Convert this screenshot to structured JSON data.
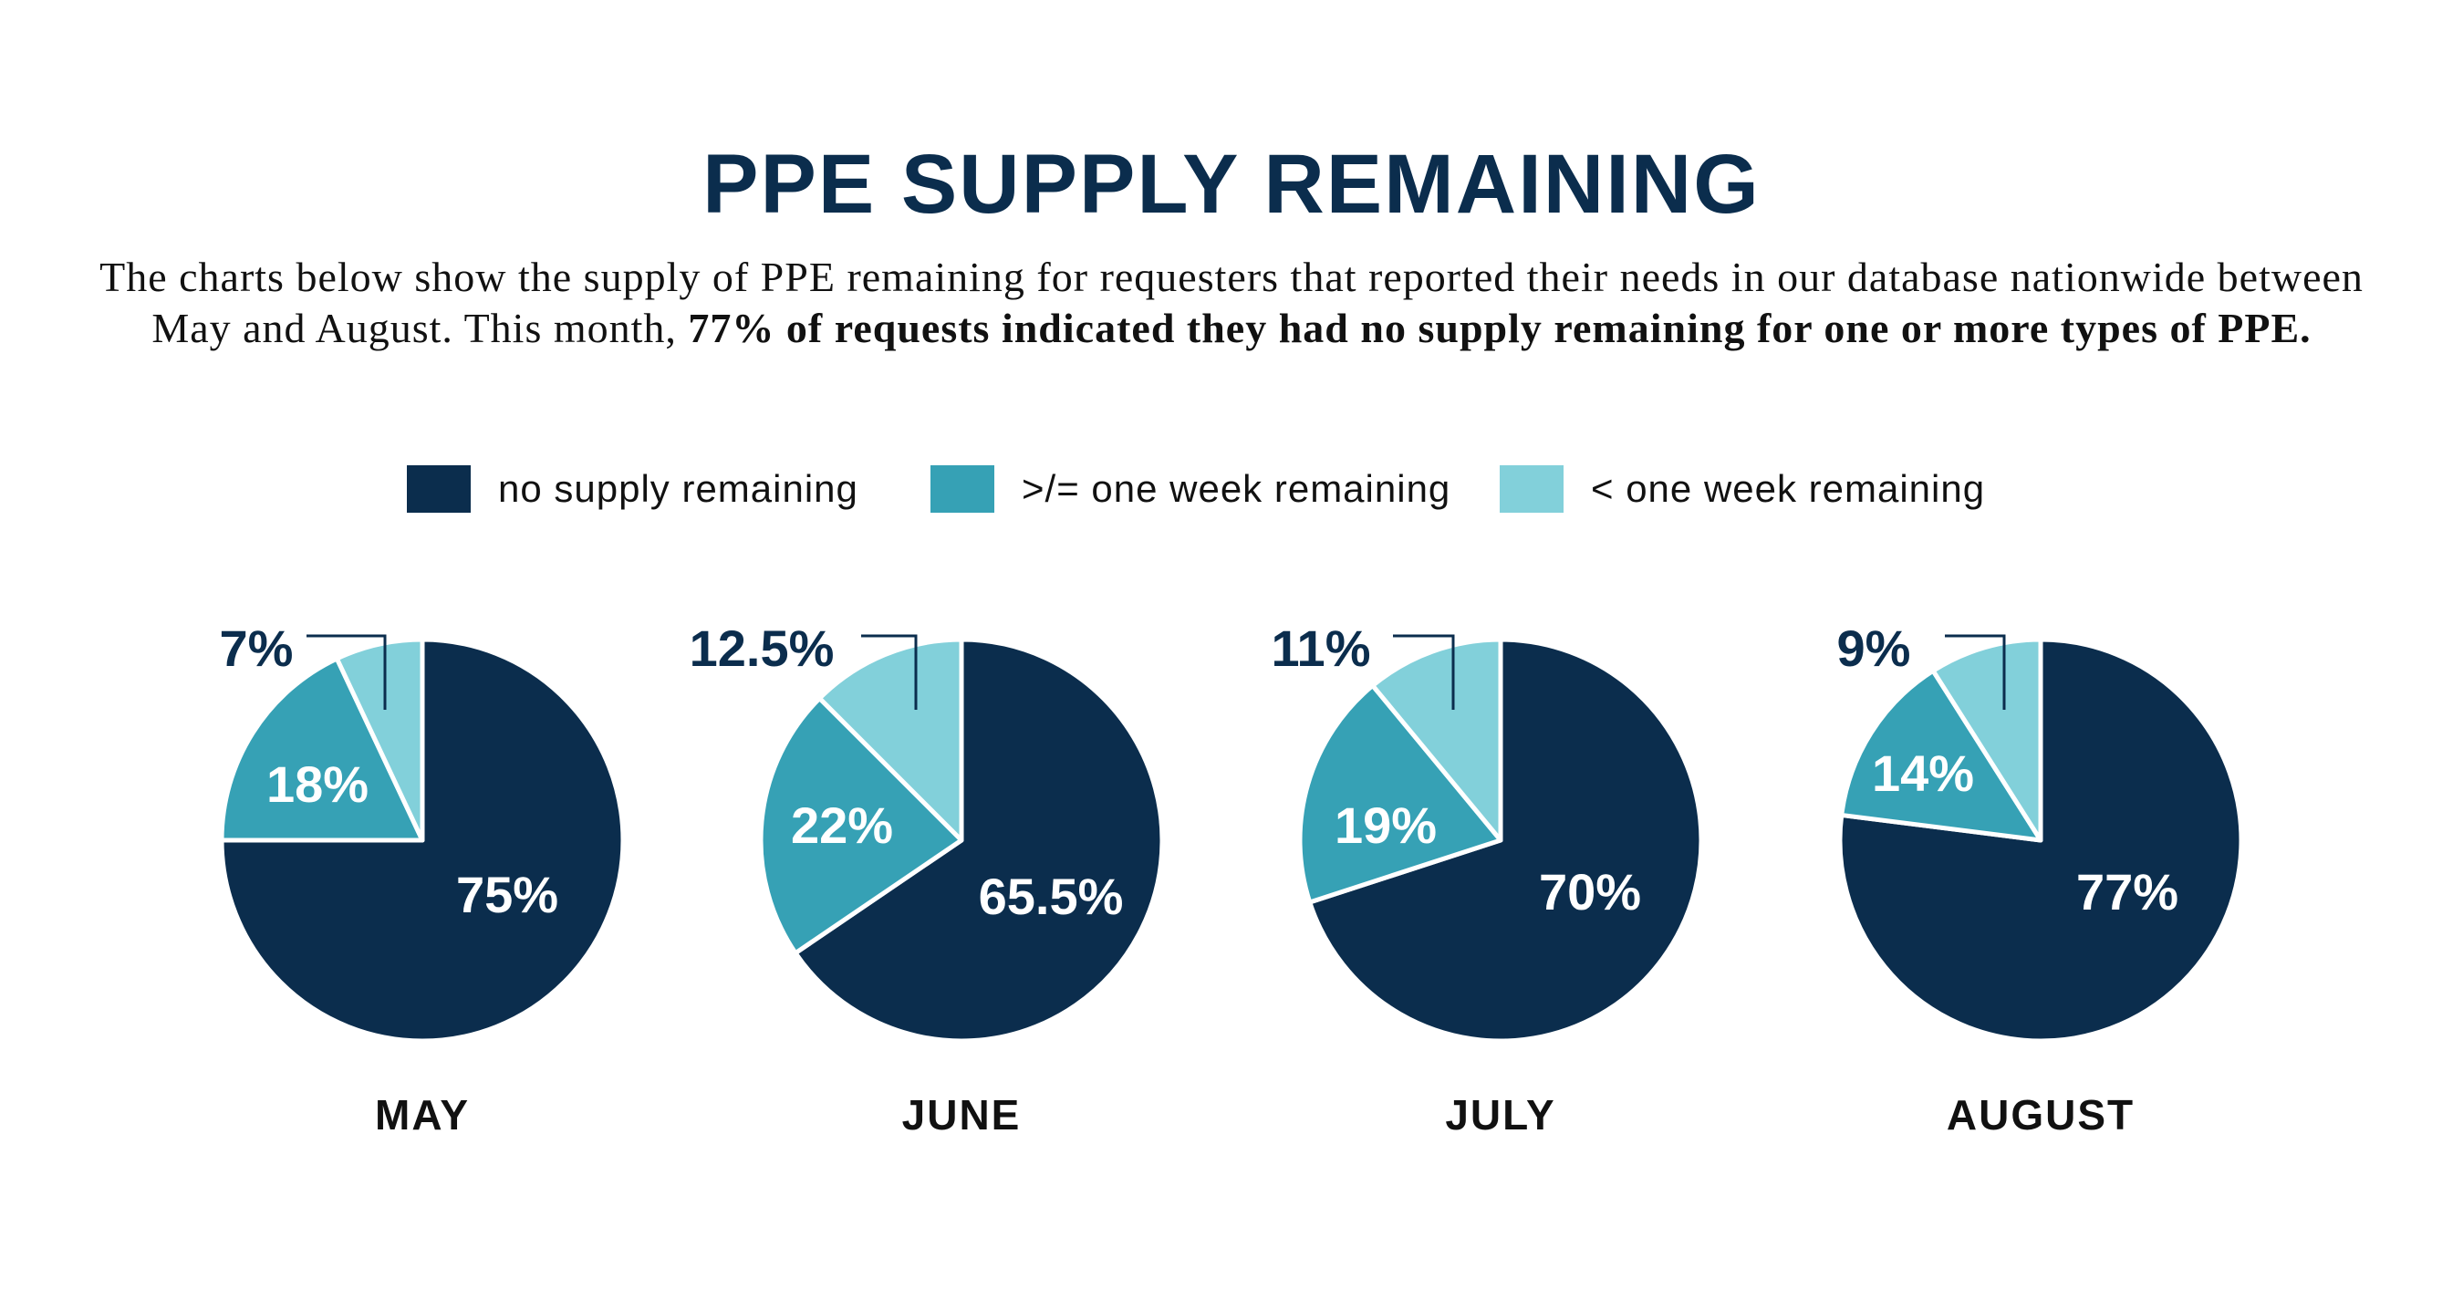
{
  "title": "PPE SUPPLY REMAINING",
  "subtitle": {
    "text_plain": "The charts below show the supply of PPE remaining for requesters that reported their needs in our database nationwide between May and August. This month,",
    "text_bold": "77% of requests indicated they had no supply remaining for one or more types of PPE."
  },
  "legend": [
    {
      "label": "no supply remaining",
      "color": "#0b2d4d"
    },
    {
      "label": ">/= one week remaining",
      "color": "#36a1b5"
    },
    {
      "label": "< one week remaining",
      "color": "#82d0da"
    }
  ],
  "chart_data": [
    {
      "type": "pie",
      "title": "MAY",
      "categories": [
        "no supply remaining",
        ">/= one week remaining",
        "< one week remaining"
      ],
      "values": [
        75,
        18,
        7
      ],
      "labels": [
        "75%",
        "18%",
        "7%"
      ]
    },
    {
      "type": "pie",
      "title": "JUNE",
      "categories": [
        "no supply remaining",
        ">/= one week remaining",
        "< one week remaining"
      ],
      "values": [
        65.5,
        22,
        12.5
      ],
      "labels": [
        "65.5%",
        "22%",
        "12.5%"
      ]
    },
    {
      "type": "pie",
      "title": "JULY",
      "categories": [
        "no supply remaining",
        ">/= one week remaining",
        "< one week remaining"
      ],
      "values": [
        70,
        19,
        11
      ],
      "labels": [
        "70%",
        "19%",
        "11%"
      ]
    },
    {
      "type": "pie",
      "title": "AUGUST",
      "categories": [
        "no supply remaining",
        ">/= one week remaining",
        "< one week remaining"
      ],
      "values": [
        77,
        14,
        9
      ],
      "labels": [
        "77%",
        "14%",
        "9%"
      ]
    }
  ]
}
